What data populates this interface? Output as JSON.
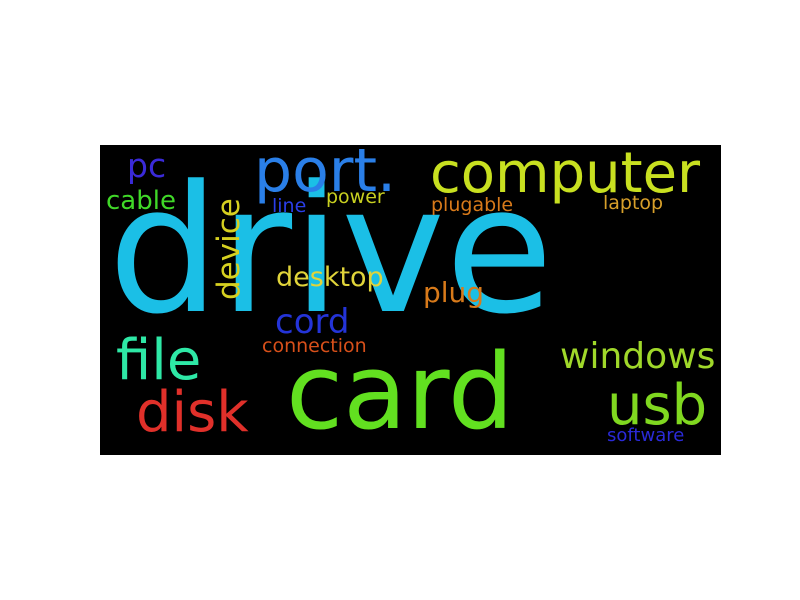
{
  "word_cloud": {
    "background": "#000000",
    "words": [
      {
        "text": "drive",
        "color": "#1bbfe6"
      },
      {
        "text": "card",
        "color": "#62e020"
      },
      {
        "text": "port.",
        "color": "#2a7fe8"
      },
      {
        "text": "computer",
        "color": "#c8e020"
      },
      {
        "text": "file",
        "color": "#2ee8a6"
      },
      {
        "text": "disk",
        "color": "#e0302a"
      },
      {
        "text": "usb",
        "color": "#80d820"
      },
      {
        "text": "windows",
        "color": "#a0d82a"
      },
      {
        "text": "device",
        "color": "#d6d020"
      },
      {
        "text": "desktop",
        "color": "#e0d43a"
      },
      {
        "text": "cord",
        "color": "#2434d8"
      },
      {
        "text": "plug",
        "color": "#d87a1a"
      },
      {
        "text": "pc",
        "color": "#3a2ad8"
      },
      {
        "text": "cable",
        "color": "#40d828"
      },
      {
        "text": "line",
        "color": "#2a3ee8"
      },
      {
        "text": "power",
        "color": "#c8d020"
      },
      {
        "text": "plugable",
        "color": "#d87a1a"
      },
      {
        "text": "laptop",
        "color": "#d8a02a"
      },
      {
        "text": "connection",
        "color": "#d8501a"
      },
      {
        "text": "software",
        "color": "#2a2ad8"
      }
    ]
  }
}
